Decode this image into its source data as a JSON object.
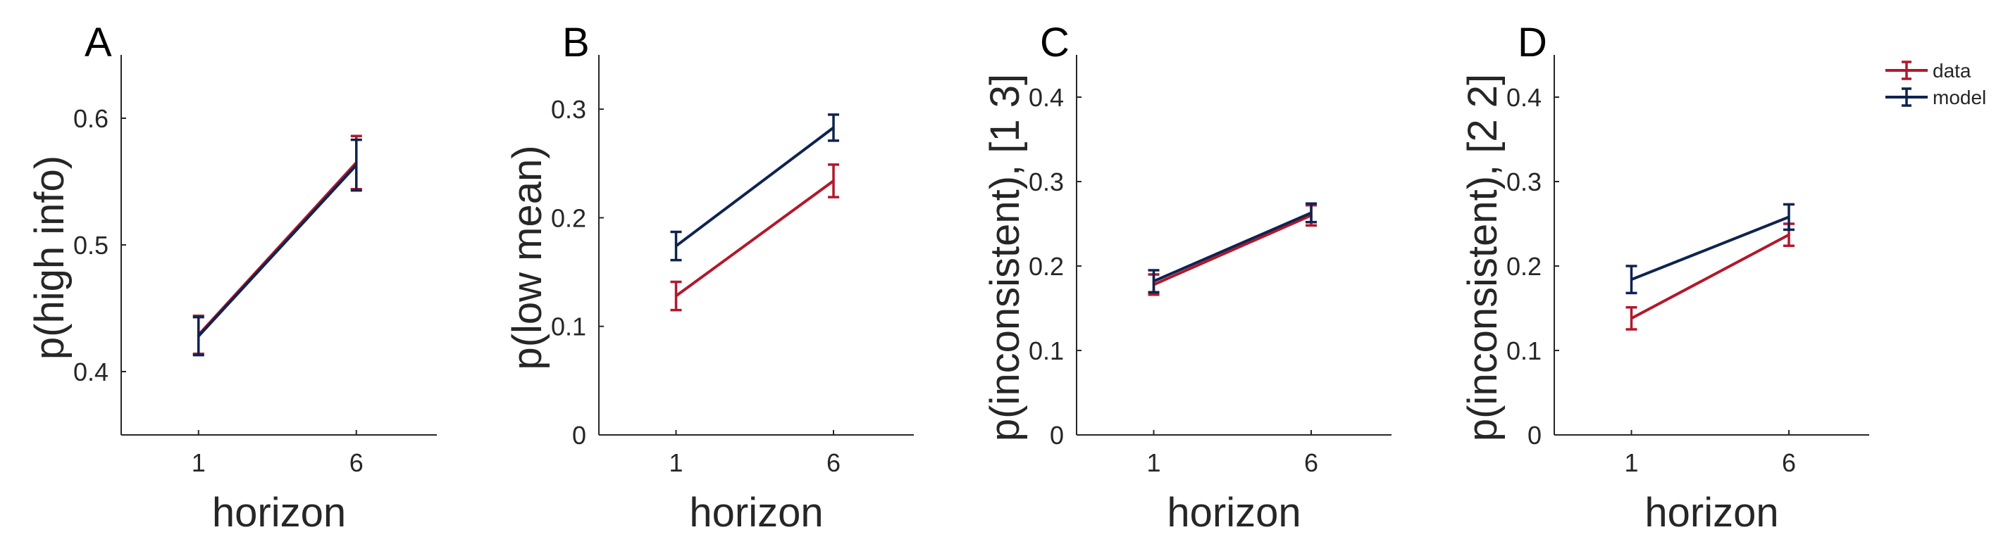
{
  "colors": {
    "data": "#b2182b",
    "model": "#0f2350",
    "axis": "#262626"
  },
  "legend": {
    "placement": "top-right",
    "entries": [
      "data",
      "model"
    ]
  },
  "chart_data": [
    {
      "type": "line",
      "panel": "A",
      "xlabel": "horizon",
      "ylabel": "p(high info)",
      "categories": [
        "1",
        "6"
      ],
      "ylim": [
        0.35,
        0.65
      ],
      "yticks": [
        0.4,
        0.5,
        0.6
      ],
      "ytick_labels": [
        "0.4",
        "0.5",
        "0.6"
      ],
      "series": [
        {
          "name": "data",
          "values": [
            0.429,
            0.565
          ],
          "errors": [
            0.015,
            0.021
          ]
        },
        {
          "name": "model",
          "values": [
            0.428,
            0.563
          ],
          "errors": [
            0.015,
            0.02
          ]
        }
      ]
    },
    {
      "type": "line",
      "panel": "B",
      "xlabel": "horizon",
      "ylabel": "p(low mean)",
      "categories": [
        "1",
        "6"
      ],
      "ylim": [
        0,
        0.35
      ],
      "yticks": [
        0,
        0.1,
        0.2,
        0.3
      ],
      "ytick_labels": [
        "0",
        "0.1",
        "0.2",
        "0.3"
      ],
      "series": [
        {
          "name": "data",
          "values": [
            0.128,
            0.234
          ],
          "errors": [
            0.013,
            0.015
          ]
        },
        {
          "name": "model",
          "values": [
            0.174,
            0.283
          ],
          "errors": [
            0.013,
            0.012
          ]
        }
      ]
    },
    {
      "type": "line",
      "panel": "C",
      "xlabel": "horizon",
      "ylabel": "p(inconsistent), [1 3]",
      "categories": [
        "1",
        "6"
      ],
      "ylim": [
        0,
        0.45
      ],
      "yticks": [
        0,
        0.1,
        0.2,
        0.3,
        0.4
      ],
      "ytick_labels": [
        "0",
        "0.1",
        "0.2",
        "0.3",
        "0.4"
      ],
      "series": [
        {
          "name": "data",
          "values": [
            0.178,
            0.26
          ],
          "errors": [
            0.012,
            0.012
          ]
        },
        {
          "name": "model",
          "values": [
            0.182,
            0.263
          ],
          "errors": [
            0.013,
            0.011
          ]
        }
      ]
    },
    {
      "type": "line",
      "panel": "D",
      "xlabel": "horizon",
      "ylabel": "p(inconsistent), [2 2]",
      "categories": [
        "1",
        "6"
      ],
      "ylim": [
        0,
        0.45
      ],
      "yticks": [
        0,
        0.1,
        0.2,
        0.3,
        0.4
      ],
      "ytick_labels": [
        "0",
        "0.1",
        "0.2",
        "0.3",
        "0.4"
      ],
      "series": [
        {
          "name": "data",
          "values": [
            0.138,
            0.237
          ],
          "errors": [
            0.013,
            0.013
          ]
        },
        {
          "name": "model",
          "values": [
            0.184,
            0.258
          ],
          "errors": [
            0.016,
            0.015
          ]
        }
      ]
    }
  ]
}
